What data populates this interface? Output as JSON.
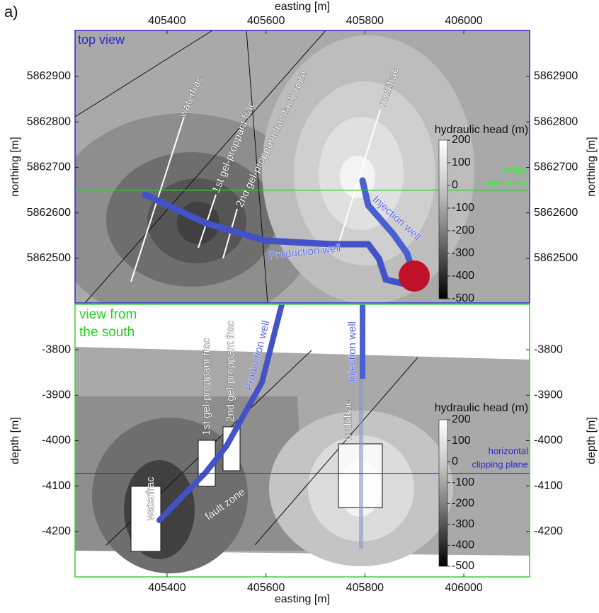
{
  "panel_label": "a)",
  "chart_data": [
    {
      "type": "map",
      "title": "top view",
      "xlabel": "easting [m]",
      "ylabel": "northing [m]",
      "xlim": [
        405214,
        406133
      ],
      "xticks": [
        405400,
        405600,
        405800,
        406000
      ],
      "ylim": [
        5862402,
        5863001
      ],
      "yticks": [
        5862500,
        5862600,
        5862700,
        5862800,
        5862900
      ],
      "clip_value": 5862650,
      "colorbar": {
        "label": "hydraulic head (m)",
        "lim": [
          -500,
          200
        ],
        "ticks": [
          200,
          100,
          0,
          -100,
          -200,
          -300,
          -400,
          -500
        ]
      },
      "annotations": [
        "waterfrac",
        "1st gel-proppant frac",
        "2nd gel-proppant frac fault zone",
        "multifrac",
        "Production well",
        "Injection well",
        "vertical",
        "clipping plane"
      ]
    },
    {
      "type": "section",
      "title": "view from",
      "subtitle": "the south",
      "xlabel": "easting [m]",
      "ylabel": "depth [m]",
      "xlim": [
        405214,
        406133
      ],
      "xticks": [
        405400,
        405600,
        405800,
        406000
      ],
      "ylim": [
        -4300,
        -3700
      ],
      "yticks": [
        -3800,
        -3900,
        -4000,
        -4100,
        -4200
      ],
      "clip_value": -4072,
      "colorbar": {
        "label": "hydraulic head (m)",
        "lim": [
          -500,
          200
        ],
        "ticks": [
          200,
          100,
          0,
          -100,
          -200,
          -300,
          -400,
          -500
        ]
      },
      "annotations": [
        "waterfrac",
        "1st gel-proppant frac",
        "2nd gel-proppant frac",
        "Production well",
        "Injection well",
        "multifrac",
        "fault zone",
        "horizontal",
        "clipping plane"
      ]
    }
  ]
}
